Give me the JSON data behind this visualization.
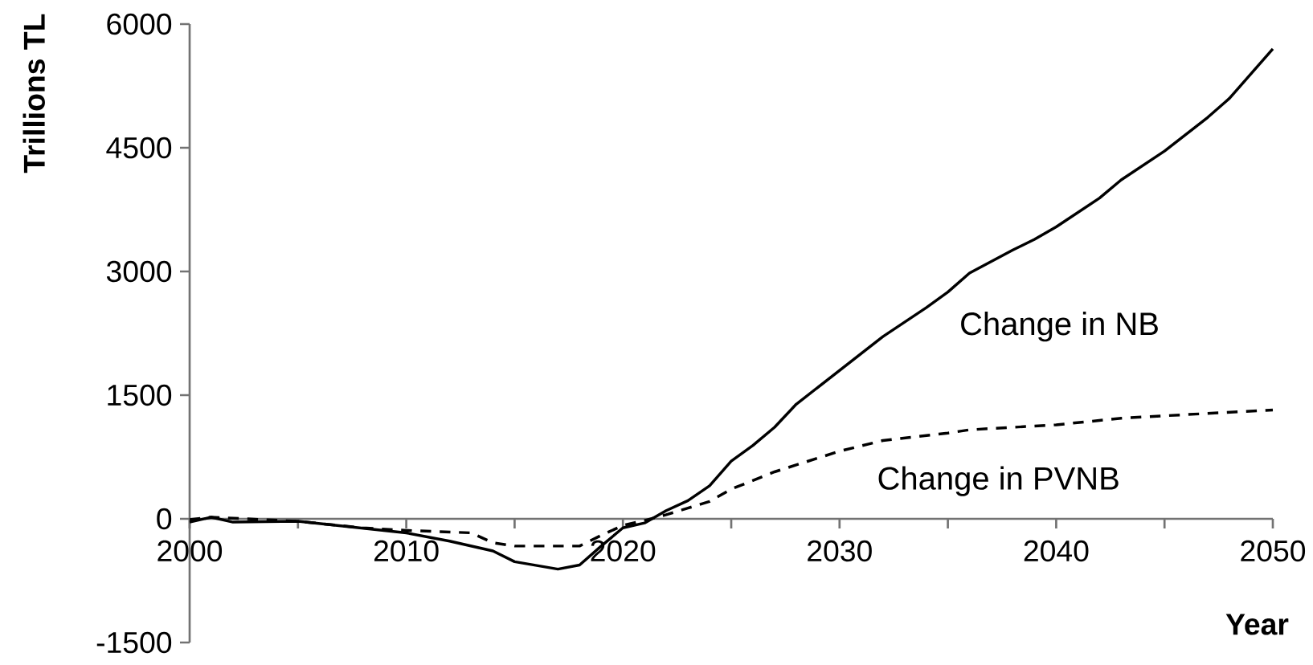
{
  "chart_data": {
    "type": "line",
    "xlabel": "Year",
    "ylabel": "Trillions TL",
    "xlim": [
      2000,
      2050
    ],
    "xticks": [
      2000,
      {
        "value": 2005,
        "label": null
      },
      2010,
      {
        "value": 2015,
        "label": null
      },
      2020,
      {
        "value": 2025,
        "label": null
      },
      2030,
      {
        "value": 2035,
        "label": null
      },
      2040,
      {
        "value": 2045,
        "label": null
      },
      2050
    ],
    "ylim": [
      -1500,
      6000
    ],
    "yticks": [
      -1500,
      0,
      1500,
      3000,
      4500,
      6000
    ],
    "grid": false,
    "legend": false,
    "marker": "none",
    "series": [
      {
        "name": "Change in NB",
        "color": "#000000",
        "line_style": "solid",
        "x": [
          2000,
          2001,
          2002,
          2005,
          2010,
          2012,
          2014,
          2015,
          2017,
          2018,
          2019,
          2020,
          2021,
          2022,
          2023,
          2024,
          2025,
          2026,
          2027,
          2028,
          2030,
          2032,
          2034,
          2035,
          2036,
          2038,
          2039,
          2040,
          2042,
          2043,
          2045,
          2047,
          2048,
          2050
        ],
        "values": [
          -40,
          20,
          -40,
          -30,
          -170,
          -270,
          -390,
          -520,
          -610,
          -560,
          -330,
          -110,
          -50,
          100,
          220,
          400,
          700,
          890,
          1110,
          1390,
          1800,
          2210,
          2560,
          2750,
          2980,
          3260,
          3390,
          3540,
          3890,
          4110,
          4460,
          4870,
          5100,
          5700
        ]
      },
      {
        "name": "Change in PVNB",
        "color": "#000000",
        "line_style": "dashed",
        "x": [
          2000,
          2001,
          2005,
          2008,
          2010,
          2013,
          2014,
          2015,
          2018,
          2019,
          2020,
          2021,
          2022,
          2023,
          2024,
          2025,
          2027,
          2030,
          2032,
          2035,
          2036,
          2040,
          2043,
          2045,
          2050
        ],
        "values": [
          -10,
          20,
          -30,
          -110,
          -140,
          -170,
          -290,
          -330,
          -330,
          -200,
          -80,
          -20,
          50,
          130,
          210,
          360,
          570,
          820,
          950,
          1040,
          1080,
          1140,
          1220,
          1250,
          1320
        ]
      }
    ]
  }
}
